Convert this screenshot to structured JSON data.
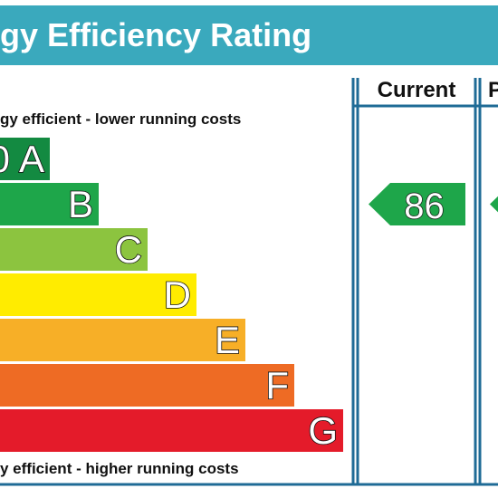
{
  "chart_data": {
    "type": "bar",
    "title": "gy Efficiency Rating",
    "top_caption": "gy efficient - lower running costs",
    "bottom_caption": "y efficient - higher running costs",
    "columns": [
      "Current",
      "P"
    ],
    "bands": [
      {
        "letter": "A",
        "range": "0",
        "color": "#138a41"
      },
      {
        "letter": "B",
        "range": "",
        "color": "#1ea64a"
      },
      {
        "letter": "C",
        "range": "",
        "color": "#8cc43f"
      },
      {
        "letter": "D",
        "range": "",
        "color": "#ffec00"
      },
      {
        "letter": "E",
        "range": "",
        "color": "#f7af27"
      },
      {
        "letter": "F",
        "range": "",
        "color": "#ee6b24"
      },
      {
        "letter": "G",
        "range": "",
        "color": "#e41b2a"
      }
    ],
    "ratings": [
      {
        "column": "Current",
        "value": 86,
        "band": "B",
        "color": "#1ea64a"
      },
      {
        "column": "P",
        "value": null,
        "band": "B",
        "color": "#1ea64a"
      }
    ]
  },
  "colors": {
    "title_bar": "#3aa9bd",
    "frame": "#1f6b96"
  }
}
